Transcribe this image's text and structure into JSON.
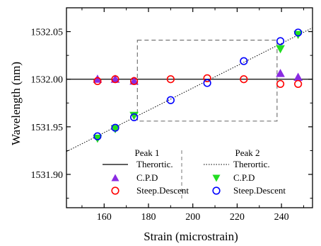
{
  "chart_data": {
    "type": "scatter",
    "xlabel": "Strain (microstrain)",
    "ylabel": "Wavelength (nm)",
    "xlim": [
      143,
      254
    ],
    "ylim": [
      1531.865,
      1532.075
    ],
    "xticks": [
      160,
      180,
      200,
      220,
      240
    ],
    "yticks": [
      1531.9,
      1531.95,
      1532.0,
      1532.05
    ],
    "xtick_labels": [
      "160",
      "180",
      "200",
      "220",
      "240"
    ],
    "ytick_labels": [
      "1531.90",
      "1531.95",
      "1532.00",
      "1532.05"
    ],
    "colors": {
      "purple": "#8a2be2",
      "red": "#ff0000",
      "green": "#22dd22",
      "blue": "#0000ff"
    },
    "series": [
      {
        "name": "Therortic.",
        "group": "Peak 1",
        "kind": "line",
        "style": "solid",
        "color": "#000000",
        "x": [
          143,
          254
        ],
        "y": [
          1532.0,
          1532.0
        ]
      },
      {
        "name": "C.P.D",
        "group": "Peak 1",
        "kind": "marker",
        "marker": "triangle-up",
        "color": "#8a2be2",
        "x": [
          157,
          165,
          173.5,
          239.5,
          247.5
        ],
        "y": [
          1532.0,
          1532.0,
          1531.998,
          1532.006,
          1532.002
        ]
      },
      {
        "name": "Steep.Descent",
        "group": "Peak 1",
        "kind": "marker",
        "marker": "circle-open",
        "color": "#ff0000",
        "x": [
          157,
          165,
          173.5,
          190,
          206.5,
          223,
          239.5,
          247.5
        ],
        "y": [
          1531.998,
          1532.0,
          1531.998,
          1532.0,
          1532.001,
          1532.0,
          1531.995,
          1531.995
        ]
      },
      {
        "name": "Therortic.",
        "group": "Peak 2",
        "kind": "line",
        "style": "dotted",
        "color": "#000000",
        "x": [
          143,
          254
        ],
        "y": [
          1531.924,
          1532.054
        ]
      },
      {
        "name": "C.P.D",
        "group": "Peak 2",
        "kind": "marker",
        "marker": "triangle-down",
        "color": "#22dd22",
        "x": [
          157,
          165,
          173.5,
          239.5,
          247.5
        ],
        "y": [
          1531.938,
          1531.948,
          1531.962,
          1532.032,
          1532.047
        ]
      },
      {
        "name": "Steep.Descent",
        "group": "Peak 2",
        "kind": "marker",
        "marker": "circle-open",
        "color": "#0000ff",
        "x": [
          157,
          165,
          173.5,
          190,
          206.5,
          223,
          239.5,
          247.5
        ],
        "y": [
          1531.94,
          1531.949,
          1531.96,
          1531.978,
          1531.996,
          1532.019,
          1532.04,
          1532.049
        ]
      }
    ],
    "legend": {
      "placement": "bottom-right",
      "groups": [
        "Peak 1",
        "Peak 2"
      ],
      "entries": [
        "Therortic.",
        "C.P.D",
        "Steep.Descent"
      ]
    },
    "zoom_box": {
      "x": [
        175,
        238
      ],
      "y": [
        1531.956,
        1532.041
      ],
      "style": "dashed"
    },
    "grid": false
  }
}
